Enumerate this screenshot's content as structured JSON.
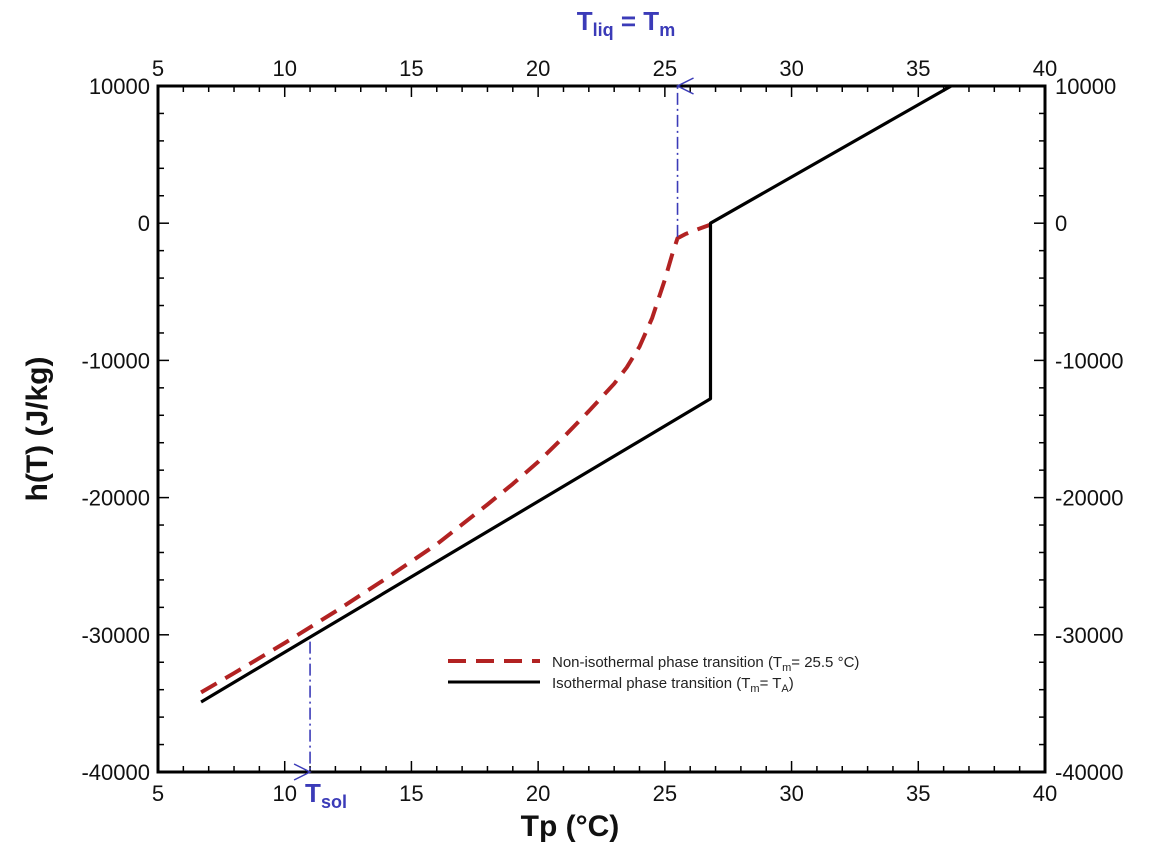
{
  "chart_data": {
    "type": "line",
    "title": "",
    "xlabel": "Tp (°C)",
    "ylabel": "h(T) (J/kg)",
    "xlim": [
      5,
      40
    ],
    "ylim": [
      -40000,
      10000
    ],
    "xticks": [
      5,
      10,
      15,
      20,
      25,
      30,
      35,
      40
    ],
    "yticks": [
      -40000,
      -30000,
      -20000,
      -10000,
      0,
      10000
    ],
    "xtick_labels": [
      "5",
      "10",
      "15",
      "20",
      "25",
      "30",
      "35",
      "40"
    ],
    "ytick_labels": [
      "-40000",
      "-30000",
      "-20000",
      "-10000",
      "0",
      "10000"
    ],
    "grid": false,
    "legend_position": "bottom-right",
    "series": [
      {
        "name": "Non-isothermal phase transition",
        "legend_main": "Non-isothermal phase transition (T",
        "legend_sub": "m",
        "legend_tail": "= 25.5 °C)",
        "style": "dashed",
        "color": "#b22222",
        "x": [
          6.7,
          8,
          10,
          12,
          14,
          16,
          18,
          19,
          20,
          21,
          22,
          23,
          23.5,
          24,
          24.5,
          25,
          25.3,
          25.5,
          25.8,
          26.2,
          26.8
        ],
        "y": [
          -34200,
          -32800,
          -30600,
          -28300,
          -25900,
          -23400,
          -20500,
          -19000,
          -17400,
          -15600,
          -13700,
          -11700,
          -10500,
          -9000,
          -6900,
          -4100,
          -2200,
          -1100,
          -800,
          -500,
          -100
        ]
      },
      {
        "name": "Isothermal phase transition",
        "legend_main": "Isothermal phase transition (T",
        "legend_sub": "m",
        "legend_tail": "= T",
        "legend_sub2": "A",
        "legend_end": ")",
        "style": "solid",
        "color": "#000000",
        "x": [
          6.7,
          26.8,
          26.8,
          36.3
        ],
        "y": [
          -34900,
          -12800,
          0,
          10000
        ]
      }
    ],
    "annotations": [
      {
        "label_main": "T",
        "label_sub": "liq",
        "label_tail": " = T",
        "label_sub2": "m",
        "x": 25.5,
        "y_from": -1000,
        "y_to": 10000,
        "direction": "up",
        "color": "#3b3bb8"
      },
      {
        "label_main": "T",
        "label_sub": "sol",
        "x": 11,
        "y_from": -30500,
        "y_to": -40000,
        "direction": "down",
        "color": "#3b3bb8"
      }
    ]
  }
}
